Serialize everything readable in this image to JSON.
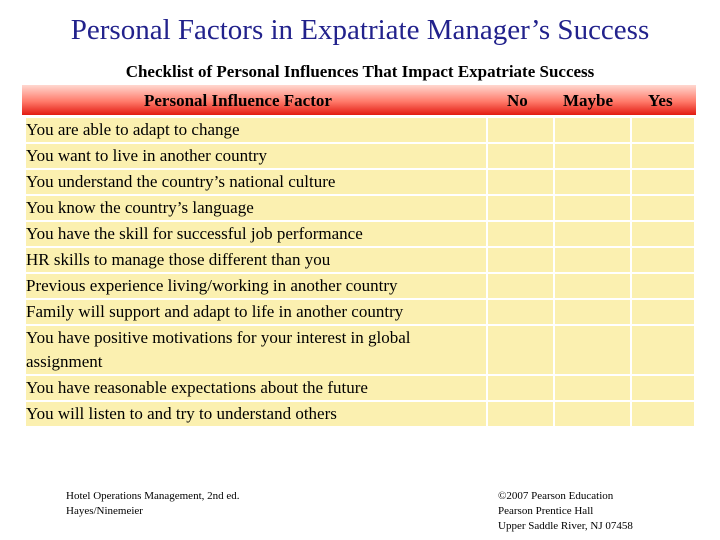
{
  "slide": {
    "title": "Personal Factors in Expatriate Manager’s Success",
    "subtitle": "Checklist of Personal Influences That Impact Expatriate Success"
  },
  "table": {
    "header": {
      "factor": "Personal Influence Factor",
      "no": "No",
      "maybe": "Maybe",
      "yes": "Yes"
    },
    "rows": [
      "You are able to adapt to change",
      "You want to live in another country",
      "You understand the country’s national culture",
      "You know the country’s language",
      "You have the skill for successful job performance",
      "HR skills to manage those different than you",
      "Previous experience living/working in another country",
      "Family will support and adapt to life in another country",
      "You have positive motivations for your interest in global assignment",
      "You have reasonable expectations about the future",
      "You will listen to and try to understand others"
    ]
  },
  "footer": {
    "left": [
      "Hotel Operations Management, 2nd ed.",
      "Hayes/Ninemeier"
    ],
    "right": [
      "©2007 Pearson Education",
      "Pearson Prentice Hall",
      "Upper Saddle River, NJ 07458"
    ]
  },
  "colors": {
    "title": "#22228c",
    "header_gradient_top": "#ffd8d0",
    "header_gradient_bottom": "#e21a10",
    "cell_fill": "#fbf0b0"
  }
}
